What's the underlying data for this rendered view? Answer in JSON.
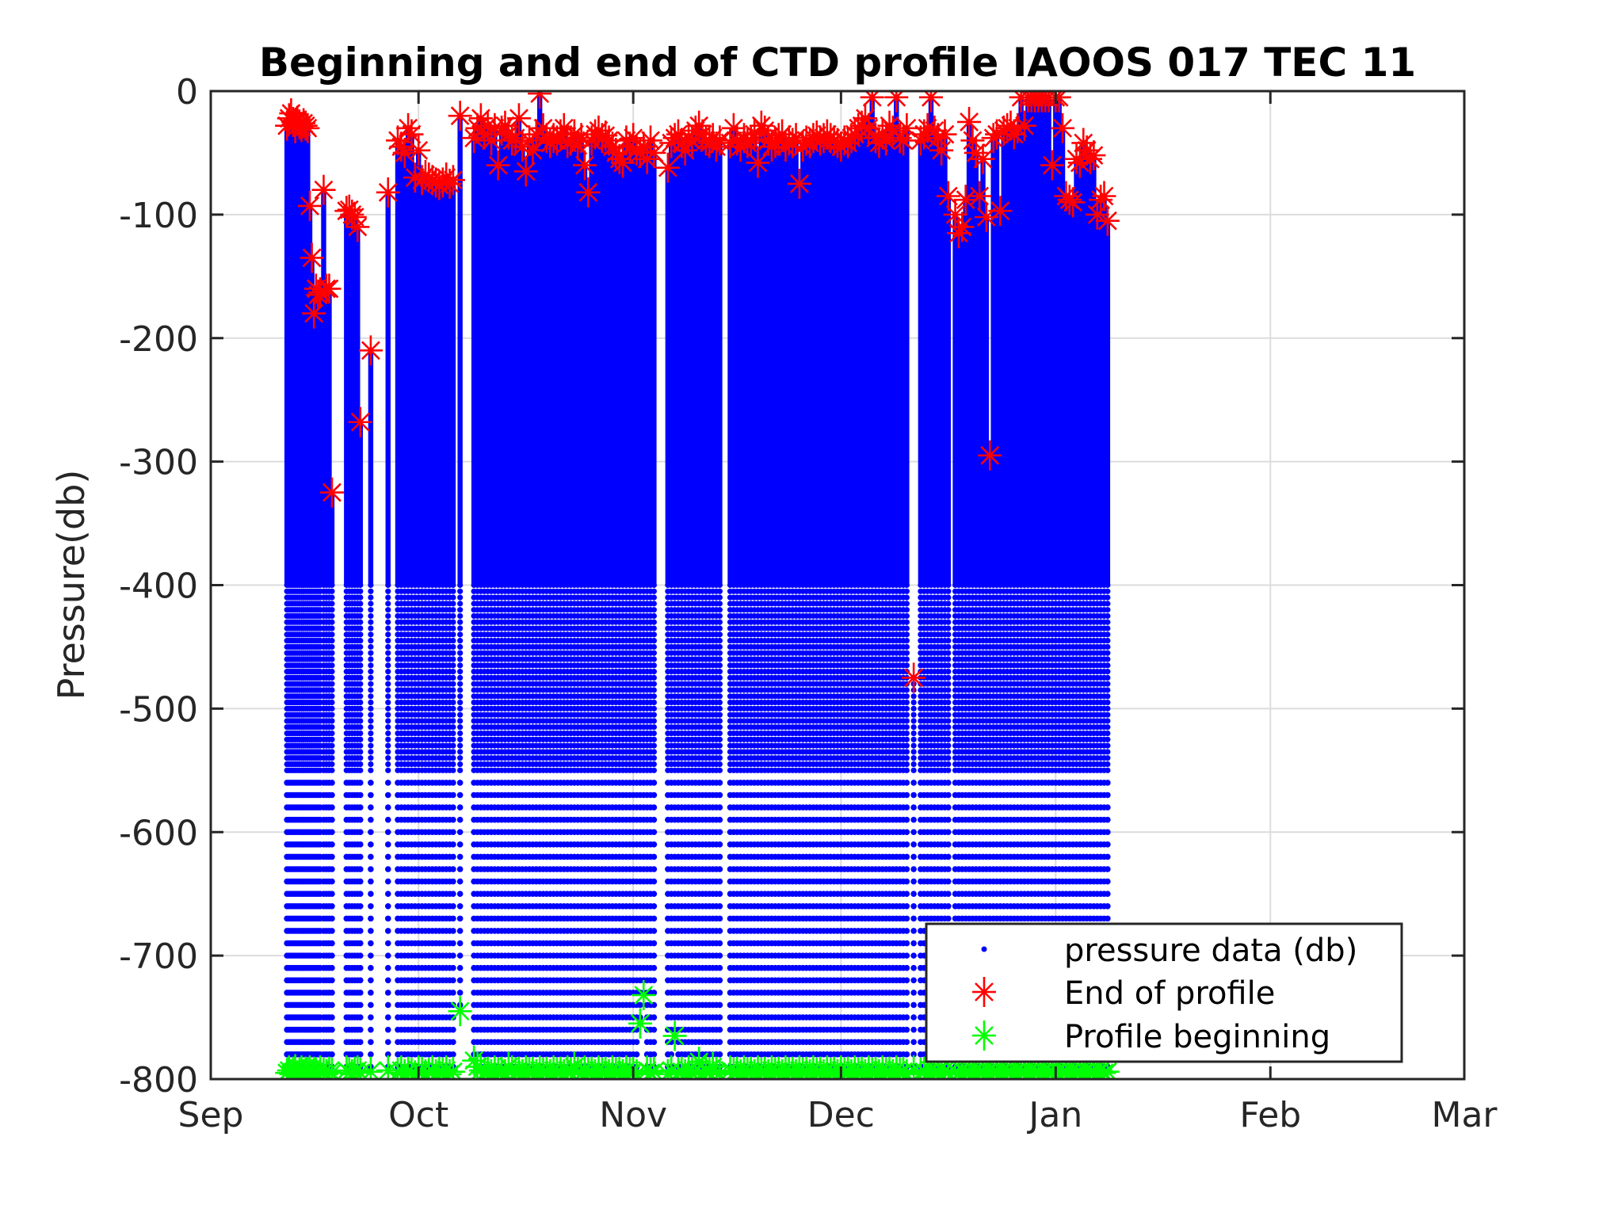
{
  "chart_data": {
    "type": "scatter",
    "title": "Beginning and end of CTD profile IAOOS 017 TEC 11",
    "xlabel": "",
    "ylabel": "Pressure(db)",
    "x_unit": "days since Sep 1",
    "xlim": [
      0,
      181
    ],
    "ylim": [
      -800,
      0
    ],
    "grid": true,
    "x_ticks": [
      {
        "day": 0,
        "label": "Sep"
      },
      {
        "day": 30,
        "label": "Oct"
      },
      {
        "day": 61,
        "label": "Nov"
      },
      {
        "day": 91,
        "label": "Dec"
      },
      {
        "day": 122,
        "label": "Jan"
      },
      {
        "day": 153,
        "label": "Feb"
      },
      {
        "day": 181,
        "label": "Mar"
      }
    ],
    "y_ticks": [
      {
        "value": 0,
        "label": "0"
      },
      {
        "value": -100,
        "label": "-100"
      },
      {
        "value": -200,
        "label": "-200"
      },
      {
        "value": -300,
        "label": "-300"
      },
      {
        "value": -400,
        "label": "-400"
      },
      {
        "value": -500,
        "label": "-500"
      },
      {
        "value": -600,
        "label": "-600"
      },
      {
        "value": -700,
        "label": "-700"
      },
      {
        "value": -800,
        "label": "-800"
      }
    ],
    "legend": {
      "placement": "bottom-right",
      "entries": [
        {
          "label": "pressure data (db)",
          "marker": "dot",
          "color": "#0000ff"
        },
        {
          "label": "End of profile",
          "marker": "asterisk",
          "color": "#ff0000"
        },
        {
          "label": "Profile beginning",
          "marker": "asterisk",
          "color": "#00ff00"
        }
      ]
    },
    "series": [
      {
        "name": "pressure data (db)",
        "color": "#0000ff",
        "sampling_db": [
          {
            "above": -400,
            "step": 1
          },
          {
            "above": -550,
            "step": 5
          },
          {
            "above": -800,
            "step": 10
          }
        ]
      },
      {
        "name": "End of profile",
        "color": "#ff0000"
      },
      {
        "name": "Profile beginning",
        "color": "#00ff00"
      }
    ],
    "profiles_columns": [
      "day",
      "end_of_profile_db",
      "profile_beginning_db"
    ],
    "profiles": [
      [
        11.0,
        -28,
        -795
      ],
      [
        11.3,
        -22,
        -793
      ],
      [
        11.6,
        -18,
        -796
      ],
      [
        11.9,
        -25,
        -794
      ],
      [
        12.2,
        -30,
        -792
      ],
      [
        12.5,
        -24,
        -797
      ],
      [
        12.8,
        -27,
        -795
      ],
      [
        13.1,
        -29,
        -793
      ],
      [
        13.4,
        -26,
        -796
      ],
      [
        13.7,
        -28,
        -794
      ],
      [
        14.0,
        -30,
        -795
      ],
      [
        14.3,
        -93,
        -793
      ],
      [
        14.6,
        -135,
        -796
      ],
      [
        14.9,
        -180,
        -794
      ],
      [
        15.2,
        -160,
        -795
      ],
      [
        15.5,
        -165,
        -797
      ],
      [
        15.8,
        -163,
        -793
      ],
      [
        16.3,
        -80,
        -795
      ],
      [
        16.7,
        -160,
        -796
      ],
      [
        17.1,
        -160,
        -794
      ],
      [
        17.5,
        -325,
        -795
      ],
      [
        19.6,
        -97,
        -793
      ],
      [
        20.0,
        -96,
        -795
      ],
      [
        20.4,
        -100,
        -796
      ],
      [
        20.8,
        -102,
        -794
      ],
      [
        21.2,
        -110,
        -793
      ],
      [
        21.6,
        -268,
        -795
      ],
      [
        23.1,
        -210,
        -794
      ],
      [
        25.6,
        -82,
        -793
      ],
      [
        27.0,
        -40,
        -795
      ],
      [
        27.5,
        -45,
        -793
      ],
      [
        28.0,
        -50,
        -796
      ],
      [
        28.5,
        -30,
        -794
      ],
      [
        29.0,
        -35,
        -795
      ],
      [
        29.5,
        -70,
        -797
      ],
      [
        30.0,
        -48,
        -793
      ],
      [
        30.5,
        -72,
        -794
      ],
      [
        31.0,
        -68,
        -796
      ],
      [
        31.5,
        -70,
        -795
      ],
      [
        32.0,
        -72,
        -793
      ],
      [
        32.5,
        -74,
        -796
      ],
      [
        33.0,
        -76,
        -794
      ],
      [
        33.5,
        -74,
        -795
      ],
      [
        34.0,
        -70,
        -793
      ],
      [
        34.5,
        -75,
        -796
      ],
      [
        35.0,
        -72,
        -794
      ],
      [
        36.0,
        -20,
        -745
      ],
      [
        38.0,
        -38,
        -785
      ],
      [
        38.5,
        -30,
        -790
      ],
      [
        39.0,
        -22,
        -793
      ],
      [
        39.5,
        -35,
        -795
      ],
      [
        40.0,
        -28,
        -794
      ],
      [
        40.5,
        -40,
        -796
      ],
      [
        41.0,
        -30,
        -793
      ],
      [
        41.5,
        -60,
        -795
      ],
      [
        42.0,
        -32,
        -794
      ],
      [
        42.5,
        -28,
        -796
      ],
      [
        43.0,
        -35,
        -790
      ],
      [
        43.5,
        -40,
        -793
      ],
      [
        44.0,
        -38,
        -795
      ],
      [
        44.5,
        -22,
        -794
      ],
      [
        45.0,
        -45,
        -796
      ],
      [
        45.5,
        -65,
        -793
      ],
      [
        46.0,
        -40,
        -795
      ],
      [
        46.5,
        -48,
        -794
      ],
      [
        47.0,
        -35,
        -796
      ],
      [
        47.5,
        -2,
        -793
      ],
      [
        48.0,
        -30,
        -795
      ],
      [
        48.5,
        -38,
        -794
      ],
      [
        49.0,
        -42,
        -796
      ],
      [
        49.5,
        -38,
        -793
      ],
      [
        50.0,
        -40,
        -795
      ],
      [
        50.5,
        -35,
        -794
      ],
      [
        51.0,
        -30,
        -796
      ],
      [
        51.5,
        -42,
        -793
      ],
      [
        52.0,
        -40,
        -795
      ],
      [
        52.5,
        -35,
        -790
      ],
      [
        53.0,
        -44,
        -794
      ],
      [
        53.5,
        -38,
        -796
      ],
      [
        54.0,
        -60,
        -793
      ],
      [
        54.5,
        -82,
        -795
      ],
      [
        55.0,
        -40,
        -794
      ],
      [
        55.5,
        -35,
        -796
      ],
      [
        56.0,
        -32,
        -793
      ],
      [
        56.5,
        -38,
        -795
      ],
      [
        57.0,
        -36,
        -794
      ],
      [
        57.5,
        -40,
        -796
      ],
      [
        58.0,
        -45,
        -793
      ],
      [
        58.5,
        -50,
        -795
      ],
      [
        59.0,
        -55,
        -794
      ],
      [
        59.5,
        -58,
        -796
      ],
      [
        60.0,
        -40,
        -793
      ],
      [
        60.5,
        -45,
        -795
      ],
      [
        61.0,
        -38,
        -794
      ],
      [
        61.5,
        -48,
        -796
      ],
      [
        62.0,
        -50,
        -755
      ],
      [
        62.5,
        -45,
        -732
      ],
      [
        63.0,
        -55,
        -793
      ],
      [
        63.5,
        -40,
        -795
      ],
      [
        64.0,
        -50,
        -794
      ],
      [
        66.0,
        -62,
        -796
      ],
      [
        66.5,
        -42,
        -793
      ],
      [
        67.0,
        -38,
        -765
      ],
      [
        67.5,
        -35,
        -795
      ],
      [
        68.0,
        -42,
        -794
      ],
      [
        68.5,
        -48,
        -796
      ],
      [
        69.0,
        -38,
        -793
      ],
      [
        69.5,
        -40,
        -795
      ],
      [
        70.0,
        -32,
        -794
      ],
      [
        70.5,
        -28,
        -786
      ],
      [
        71.0,
        -35,
        -796
      ],
      [
        71.5,
        -40,
        -793
      ],
      [
        72.0,
        -42,
        -795
      ],
      [
        72.5,
        -38,
        -790
      ],
      [
        73.0,
        -45,
        -794
      ],
      [
        73.5,
        -40,
        -796
      ],
      [
        75.0,
        -42,
        -793
      ],
      [
        75.5,
        -30,
        -795
      ],
      [
        76.0,
        -40,
        -794
      ],
      [
        76.5,
        -45,
        -796
      ],
      [
        77.0,
        -38,
        -793
      ],
      [
        77.5,
        -42,
        -795
      ],
      [
        78.0,
        -40,
        -794
      ],
      [
        78.5,
        -35,
        -796
      ],
      [
        79.0,
        -58,
        -793
      ],
      [
        79.5,
        -28,
        -795
      ],
      [
        80.0,
        -32,
        -794
      ],
      [
        80.5,
        -40,
        -796
      ],
      [
        81.0,
        -45,
        -793
      ],
      [
        81.5,
        -42,
        -795
      ],
      [
        82.0,
        -38,
        -794
      ],
      [
        82.5,
        -35,
        -796
      ],
      [
        83.0,
        -45,
        -793
      ],
      [
        83.5,
        -40,
        -795
      ],
      [
        84.0,
        -42,
        -794
      ],
      [
        84.5,
        -38,
        -796
      ],
      [
        85.0,
        -75,
        -793
      ],
      [
        85.5,
        -45,
        -795
      ],
      [
        86.0,
        -40,
        -794
      ],
      [
        86.5,
        -42,
        -796
      ],
      [
        87.0,
        -38,
        -793
      ],
      [
        87.5,
        -36,
        -795
      ],
      [
        88.0,
        -40,
        -794
      ],
      [
        88.5,
        -38,
        -796
      ],
      [
        89.0,
        -35,
        -793
      ],
      [
        89.5,
        -38,
        -795
      ],
      [
        90.0,
        -40,
        -794
      ],
      [
        90.5,
        -42,
        -796
      ],
      [
        91.0,
        -45,
        -793
      ],
      [
        91.5,
        -40,
        -795
      ],
      [
        92.0,
        -42,
        -794
      ],
      [
        92.5,
        -38,
        -796
      ],
      [
        93.0,
        -35,
        -793
      ],
      [
        93.5,
        -30,
        -795
      ],
      [
        94.0,
        -28,
        -794
      ],
      [
        94.5,
        -22,
        -796
      ],
      [
        95.0,
        -30,
        -793
      ],
      [
        95.5,
        -5,
        -795
      ],
      [
        96.0,
        -38,
        -794
      ],
      [
        96.5,
        -42,
        -796
      ],
      [
        97.0,
        -35,
        -793
      ],
      [
        97.5,
        -40,
        -795
      ],
      [
        98.0,
        -28,
        -794
      ],
      [
        98.5,
        -32,
        -796
      ],
      [
        99.0,
        -5,
        -793
      ],
      [
        99.5,
        -38,
        -795
      ],
      [
        100.0,
        -40,
        -794
      ],
      [
        100.5,
        -30,
        -796
      ],
      [
        101.5,
        -475,
        -793
      ],
      [
        102.5,
        -40,
        -795
      ],
      [
        103.0,
        -35,
        -794
      ],
      [
        103.5,
        -30,
        -796
      ],
      [
        104.0,
        -5,
        -793
      ],
      [
        104.5,
        -32,
        -795
      ],
      [
        105.0,
        -38,
        -794
      ],
      [
        105.5,
        -48,
        -796
      ],
      [
        106.0,
        -35,
        -793
      ],
      [
        106.5,
        -85,
        -795
      ],
      [
        107.5,
        -100,
        -794
      ],
      [
        108.0,
        -115,
        -796
      ],
      [
        108.5,
        -110,
        -793
      ],
      [
        109.0,
        -88,
        -795
      ],
      [
        109.5,
        -25,
        -794
      ],
      [
        110.0,
        -40,
        -796
      ],
      [
        110.5,
        -50,
        -793
      ],
      [
        111.0,
        -85,
        -795
      ],
      [
        111.5,
        -55,
        -794
      ],
      [
        112.0,
        -102,
        -796
      ],
      [
        112.5,
        -295,
        -793
      ],
      [
        113.0,
        -38,
        -795
      ],
      [
        113.5,
        -35,
        -794
      ],
      [
        114.0,
        -97,
        -796
      ],
      [
        114.5,
        -32,
        -793
      ],
      [
        115.0,
        -30,
        -795
      ],
      [
        115.5,
        -28,
        -794
      ],
      [
        116.0,
        -35,
        -796
      ],
      [
        116.5,
        -30,
        -793
      ],
      [
        117.0,
        -5,
        -795
      ],
      [
        117.5,
        -28,
        -794
      ],
      [
        118.0,
        -5,
        -796
      ],
      [
        118.5,
        -5,
        -793
      ],
      [
        119.0,
        -5,
        -795
      ],
      [
        119.5,
        -5,
        -794
      ],
      [
        120.0,
        -5,
        -796
      ],
      [
        120.5,
        -5,
        -793
      ],
      [
        121.0,
        -5,
        -795
      ],
      [
        121.5,
        -60,
        -794
      ],
      [
        122.0,
        -5,
        -796
      ],
      [
        122.5,
        -5,
        -793
      ],
      [
        123.0,
        -30,
        -795
      ],
      [
        123.5,
        -85,
        -794
      ],
      [
        124.0,
        -88,
        -796
      ],
      [
        124.5,
        -90,
        -793
      ],
      [
        125.0,
        -55,
        -795
      ],
      [
        125.5,
        -58,
        -794
      ],
      [
        126.0,
        -42,
        -796
      ],
      [
        126.5,
        -48,
        -793
      ],
      [
        127.0,
        -55,
        -795
      ],
      [
        127.5,
        -52,
        -794
      ],
      [
        128.0,
        -100,
        -796
      ],
      [
        128.5,
        -88,
        -793
      ],
      [
        129.0,
        -85,
        -795
      ],
      [
        129.5,
        -105,
        -794
      ]
    ]
  }
}
